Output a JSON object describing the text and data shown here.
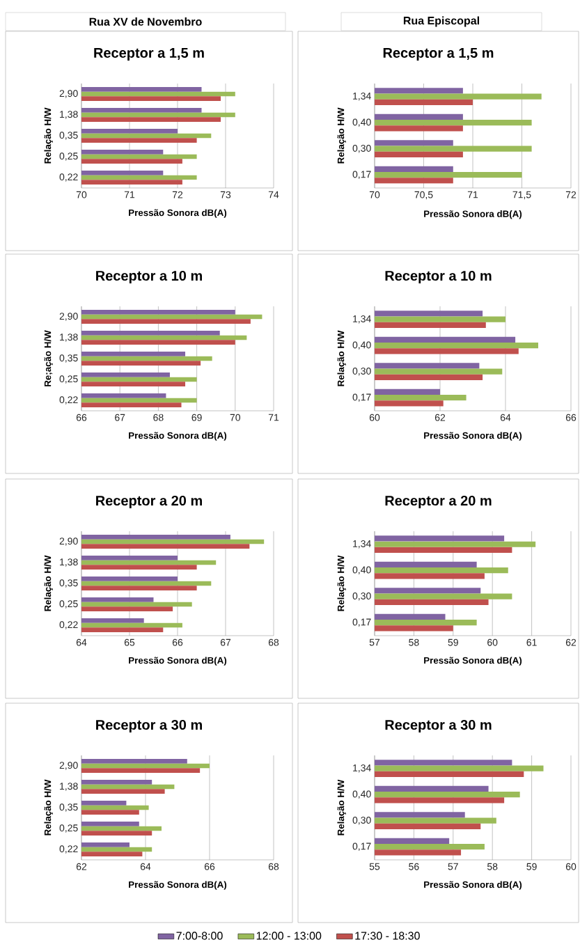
{
  "chart_data": [
    {
      "type": "bar",
      "orientation": "horizontal",
      "title": "Receptor a 1,5 m",
      "xlabel": "Pressão Sonora dB(A)",
      "ylabel": "Relação H/W",
      "annotations": [
        "Rua XV de Novembro"
      ],
      "categories": [
        "2,90",
        "1,38",
        "0,35",
        "0,25",
        "0,22"
      ],
      "series": [
        {
          "color": "#8064a2",
          "values": [
            72.5,
            72.5,
            72.0,
            71.7,
            71.7
          ]
        },
        {
          "color": "#9bbb59",
          "values": [
            73.2,
            73.2,
            72.7,
            72.4,
            72.4
          ]
        },
        {
          "color": "#c0504d",
          "values": [
            72.9,
            72.9,
            72.4,
            72.1,
            72.1
          ]
        }
      ],
      "xlim": [
        70,
        74
      ],
      "xticks": [
        70,
        71,
        72,
        73,
        74
      ],
      "grid": "x"
    },
    {
      "type": "bar",
      "orientation": "horizontal",
      "title": "Receptor a 1,5 m",
      "xlabel": "Pressão Sonora dB(A)",
      "ylabel": "Relação H/W",
      "annotations": [
        "Rua Episcopal"
      ],
      "categories": [
        "1,34",
        "0,40",
        "0,30",
        "0,17"
      ],
      "series": [
        {
          "color": "#8064a2",
          "values": [
            70.9,
            70.9,
            70.8,
            70.8
          ]
        },
        {
          "color": "#9bbb59",
          "values": [
            71.7,
            71.6,
            71.6,
            71.5
          ]
        },
        {
          "color": "#c0504d",
          "values": [
            71.0,
            70.9,
            70.9,
            70.8
          ]
        }
      ],
      "xlim": [
        70,
        72
      ],
      "xticks": [
        70,
        {
          "value": 70.5,
          "label": "70,5"
        },
        71,
        {
          "value": 71.5,
          "label": "71,5"
        },
        72
      ],
      "grid": "x"
    },
    {
      "type": "bar",
      "orientation": "horizontal",
      "title": "Receptor a 10 m",
      "xlabel": "Pressão Sonora dB(A)",
      "ylabel": "Re;ação H/W",
      "categories": [
        "2,90",
        "1,38",
        "0,35",
        "0,25",
        "0,22"
      ],
      "series": [
        {
          "color": "#8064a2",
          "values": [
            70.0,
            69.6,
            68.7,
            68.3,
            68.2
          ]
        },
        {
          "color": "#9bbb59",
          "values": [
            70.7,
            70.3,
            69.4,
            69.0,
            69.0
          ]
        },
        {
          "color": "#c0504d",
          "values": [
            70.4,
            70.0,
            69.1,
            68.7,
            68.6
          ]
        }
      ],
      "xlim": [
        66,
        71
      ],
      "xticks": [
        66,
        67,
        68,
        69,
        70,
        71
      ],
      "grid": "x"
    },
    {
      "type": "bar",
      "orientation": "horizontal",
      "title": "Receptor a 10 m",
      "xlabel": "Pressão Sonora dB(A)",
      "ylabel": "Relação H/W",
      "categories": [
        "1,34",
        "0,40",
        "0,30",
        "0,17"
      ],
      "series": [
        {
          "color": "#8064a2",
          "values": [
            63.3,
            64.3,
            63.2,
            62.0
          ]
        },
        {
          "color": "#9bbb59",
          "values": [
            64.0,
            65.0,
            63.9,
            62.8
          ]
        },
        {
          "color": "#c0504d",
          "values": [
            63.4,
            64.4,
            63.3,
            62.1
          ]
        }
      ],
      "xlim": [
        60,
        66
      ],
      "xticks": [
        60,
        62,
        64,
        66
      ],
      "grid": "x"
    },
    {
      "type": "bar",
      "orientation": "horizontal",
      "title": "Receptor a 20 m",
      "xlabel": "Pressão Sonora dB(A)",
      "ylabel": "Relação H/W",
      "categories": [
        "2,90",
        "1,38",
        "0,35",
        "0,25",
        "0,22"
      ],
      "series": [
        {
          "color": "#8064a2",
          "values": [
            67.1,
            66.0,
            66.0,
            65.5,
            65.3
          ]
        },
        {
          "color": "#9bbb59",
          "values": [
            67.8,
            66.8,
            66.7,
            66.3,
            66.1
          ]
        },
        {
          "color": "#c0504d",
          "values": [
            67.5,
            66.4,
            66.4,
            65.9,
            65.7
          ]
        }
      ],
      "xlim": [
        64,
        68
      ],
      "xticks": [
        64,
        65,
        66,
        67,
        68
      ],
      "grid": "x"
    },
    {
      "type": "bar",
      "orientation": "horizontal",
      "title": "Receptor a 20 m",
      "xlabel": "Pressão Sonora dB(A)",
      "ylabel": "Relação H/W",
      "categories": [
        "1,34",
        "0,40",
        "0,30",
        "0,17"
      ],
      "series": [
        {
          "color": "#8064a2",
          "values": [
            60.3,
            59.6,
            59.7,
            58.8
          ]
        },
        {
          "color": "#9bbb59",
          "values": [
            61.1,
            60.4,
            60.5,
            59.6
          ]
        },
        {
          "color": "#c0504d",
          "values": [
            60.5,
            59.8,
            59.9,
            59.0
          ]
        }
      ],
      "xlim": [
        57,
        62
      ],
      "xticks": [
        57,
        58,
        59,
        60,
        61,
        62
      ],
      "grid": "x"
    },
    {
      "type": "bar",
      "orientation": "horizontal",
      "title": "Receptor a 30 m",
      "xlabel": "Pressão Sonora dB(A)",
      "ylabel": "Relação H/W",
      "categories": [
        "2,90",
        "1,38",
        "0,35",
        "0,25",
        "0,22"
      ],
      "series": [
        {
          "name": "7:00-8:00",
          "color": "#8064a2",
          "values": [
            65.3,
            64.2,
            63.4,
            63.8,
            63.5
          ]
        },
        {
          "name": "12:00 - 13:00",
          "color": "#9bbb59",
          "values": [
            66.0,
            64.9,
            64.1,
            64.5,
            64.2
          ]
        },
        {
          "name": "17:30 - 18:30",
          "color": "#c0504d",
          "values": [
            65.7,
            64.6,
            63.8,
            64.2,
            63.9
          ]
        }
      ],
      "xlim": [
        62,
        68
      ],
      "xticks": [
        62,
        64,
        66,
        68
      ],
      "grid": "x",
      "legend": "bottom"
    },
    {
      "type": "bar",
      "orientation": "horizontal",
      "title": "Receptor a 30 m",
      "xlabel": "Pressão Sonora dB(A)",
      "ylabel": "Relação H/W",
      "categories": [
        "1,34",
        "0,40",
        "0,30",
        "0,17"
      ],
      "series": [
        {
          "color": "#8064a2",
          "values": [
            58.5,
            57.9,
            57.3,
            56.9
          ]
        },
        {
          "color": "#9bbb59",
          "values": [
            59.3,
            58.7,
            58.1,
            57.8
          ]
        },
        {
          "color": "#c0504d",
          "values": [
            58.8,
            58.3,
            57.7,
            57.2
          ]
        }
      ],
      "xlim": [
        55,
        60
      ],
      "xticks": [
        55,
        56,
        57,
        58,
        59,
        60
      ],
      "grid": "x"
    }
  ]
}
